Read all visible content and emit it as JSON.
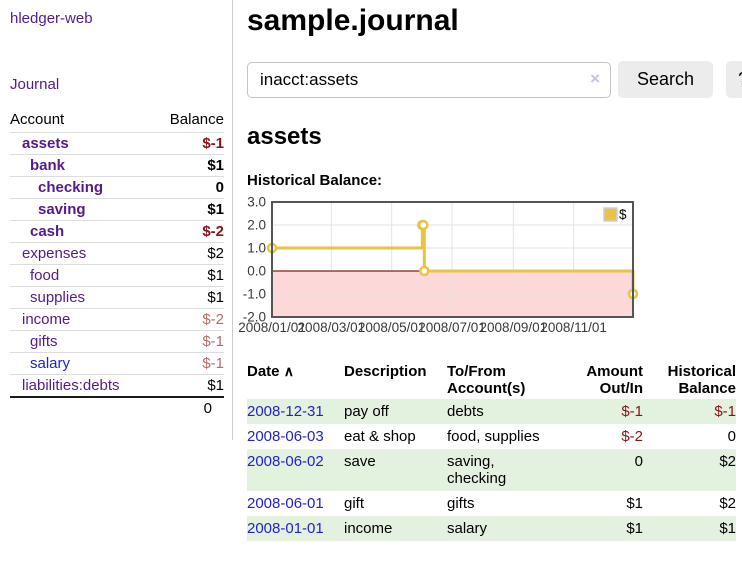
{
  "sidebar": {
    "app_title": "hledger-web",
    "nav": {
      "journal_label": "Journal"
    },
    "accounts_table": {
      "headers": {
        "account": "Account",
        "balance": "Balance"
      },
      "rows": [
        {
          "account": "assets",
          "balance": "$-1",
          "depth": 1,
          "bold": true,
          "amount_class": "neg"
        },
        {
          "account": "bank",
          "balance": "$1",
          "depth": 2,
          "bold": true,
          "amount_class": ""
        },
        {
          "account": "checking",
          "balance": "0",
          "depth": 3,
          "bold": true,
          "amount_class": ""
        },
        {
          "account": "saving",
          "balance": "$1",
          "depth": 3,
          "bold": true,
          "amount_class": ""
        },
        {
          "account": "cash",
          "balance": "$-2",
          "depth": 2,
          "bold": true,
          "amount_class": "neg"
        },
        {
          "account": "expenses",
          "balance": "$2",
          "depth": 1,
          "bold": false,
          "amount_class": ""
        },
        {
          "account": "food",
          "balance": "$1",
          "depth": 2,
          "bold": false,
          "amount_class": ""
        },
        {
          "account": "supplies",
          "balance": "$1",
          "depth": 2,
          "bold": false,
          "amount_class": ""
        },
        {
          "account": "income",
          "balance": "$-2",
          "depth": 1,
          "bold": false,
          "amount_class": "neg-muted"
        },
        {
          "account": "gifts",
          "balance": "$-1",
          "depth": 2,
          "bold": false,
          "amount_class": "neg-muted"
        },
        {
          "account": "salary",
          "balance": "$-1",
          "depth": 2,
          "bold": false,
          "amount_class": "neg-muted",
          "link": "blue"
        },
        {
          "account": "liabilities:debts",
          "balance": "$1",
          "depth": 1,
          "bold": false,
          "amount_class": ""
        }
      ],
      "total": "0"
    }
  },
  "main": {
    "title": "sample.journal",
    "search": {
      "value": "inacct:assets",
      "clear_icon": "×",
      "search_button": "Search",
      "help_button": "?"
    },
    "account_heading": "assets",
    "chart_label": "Historical Balance:"
  },
  "chart_data": {
    "type": "line",
    "style": "step",
    "title": "Historical Balance",
    "series": [
      {
        "name": "$",
        "color": "#e9c344",
        "points": [
          {
            "date": "2008-01-01",
            "value": 1
          },
          {
            "date": "2008-06-01",
            "value": 2
          },
          {
            "date": "2008-06-02",
            "value": 2
          },
          {
            "date": "2008-06-03",
            "value": 0
          },
          {
            "date": "2008-12-31",
            "value": -1
          }
        ]
      }
    ],
    "ylim": [
      -2,
      3
    ],
    "y_ticks": [
      3.0,
      2.0,
      1.0,
      0.0,
      -1.0,
      -2.0
    ],
    "x_range": [
      "2008-01-01",
      "2008-12-31"
    ],
    "x_ticks": [
      {
        "date": "2008-01-01",
        "label": "2008/01/01"
      },
      {
        "date": "2008-03-01",
        "label": "2008/03/01"
      },
      {
        "date": "2008-05-01",
        "label": "2008/05/01"
      },
      {
        "date": "2008-07-01",
        "label": "2008/07/01"
      },
      {
        "date": "2008-09-01",
        "label": "2008/09/01"
      },
      {
        "date": "2008-11-01",
        "label": "2008/11/01"
      }
    ],
    "grid": true,
    "negative_region_color": "#fcd8d8",
    "zero_line_color": "#8b1a1a",
    "grid_color": "#e3e3e3",
    "border_color": "#555555",
    "legend": {
      "label": "$",
      "position": "top-right"
    }
  },
  "register": {
    "headers": {
      "date": "Date",
      "sort_icon": "∧",
      "description": "Description",
      "accounts": "To/From Account(s)",
      "amount": "Amount Out/In",
      "balance": "Historical Balance"
    },
    "rows": [
      {
        "date": "2008-12-31",
        "description": "pay off",
        "accounts": "debts",
        "amount": "$-1",
        "balance": "$-1",
        "amount_class": "neg",
        "balance_class": "neg"
      },
      {
        "date": "2008-06-03",
        "description": "eat & shop",
        "accounts": "food, supplies",
        "amount": "$-2",
        "balance": "0",
        "amount_class": "neg",
        "balance_class": ""
      },
      {
        "date": "2008-06-02",
        "description": "save",
        "accounts": "saving, checking",
        "amount": "0",
        "balance": "$2",
        "amount_class": "",
        "balance_class": ""
      },
      {
        "date": "2008-06-01",
        "description": "gift",
        "accounts": "gifts",
        "amount": "$1",
        "balance": "$2",
        "amount_class": "",
        "balance_class": ""
      },
      {
        "date": "2008-01-01",
        "description": "income",
        "accounts": "salary",
        "amount": "$1",
        "balance": "$1",
        "amount_class": "",
        "balance_class": ""
      }
    ]
  }
}
